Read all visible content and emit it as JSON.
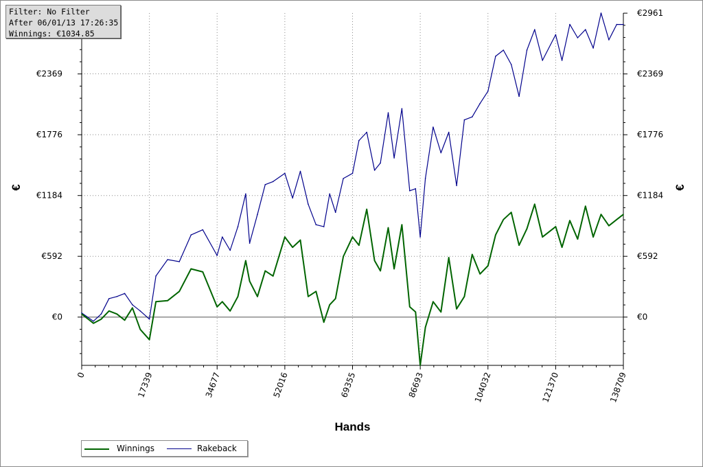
{
  "filter_box": {
    "line1": "Filter: No Filter",
    "line2": "After 06/01/13 17:26:35",
    "line3": "Winnings: €1034.85"
  },
  "colors": {
    "winnings": "#006400",
    "rakeback": "#00008b",
    "zero_line": "#555555"
  },
  "chart_data": {
    "type": "line",
    "xlabel": "Hands",
    "ylabel": "€",
    "ylabel_right": "€",
    "xlim": [
      0,
      138709
    ],
    "ylim": [
      -470,
      2961
    ],
    "x_ticks": [
      0,
      17339,
      34677,
      52016,
      69355,
      86693,
      104032,
      121370,
      138709
    ],
    "y_ticks": [
      0,
      592,
      1184,
      1776,
      2369,
      2961
    ],
    "y_tick_labels": [
      "€0",
      "€592",
      "€1184",
      "€1776",
      "€2369",
      "€2961"
    ],
    "grid": true,
    "legend_position": "bottom-left",
    "series": [
      {
        "name": "Winnings",
        "color": "#006400",
        "x": [
          0,
          3000,
          5000,
          7000,
          9000,
          11000,
          13000,
          15000,
          17339,
          19000,
          22000,
          25000,
          28000,
          31000,
          34677,
          36000,
          38000,
          40000,
          42000,
          43000,
          45000,
          47000,
          49000,
          52016,
          54000,
          56000,
          58000,
          60000,
          62000,
          63500,
          65000,
          67000,
          69355,
          71000,
          73000,
          75000,
          76500,
          78500,
          80000,
          82000,
          84000,
          85500,
          86693,
          88000,
          90000,
          92000,
          94000,
          96000,
          98000,
          100000,
          102000,
          104032,
          106000,
          108000,
          110000,
          112000,
          114000,
          116000,
          118000,
          121370,
          123000,
          125000,
          127000,
          129000,
          131000,
          133000,
          135000,
          137000,
          138709
        ],
        "y": [
          30,
          -60,
          -20,
          60,
          30,
          -30,
          90,
          -120,
          -220,
          150,
          160,
          250,
          470,
          440,
          100,
          150,
          60,
          200,
          550,
          350,
          200,
          450,
          400,
          780,
          680,
          750,
          200,
          250,
          -50,
          120,
          180,
          590,
          780,
          700,
          1050,
          550,
          450,
          870,
          470,
          900,
          100,
          50,
          -470,
          -100,
          150,
          50,
          580,
          80,
          200,
          610,
          420,
          500,
          800,
          950,
          1020,
          700,
          860,
          1100,
          780,
          880,
          680,
          940,
          760,
          1080,
          780,
          1000,
          890,
          950,
          1000
        ]
      },
      {
        "name": "Rakeback",
        "color": "#00008b",
        "x": [
          0,
          3000,
          5000,
          7000,
          9000,
          11000,
          13000,
          15000,
          17339,
          19000,
          22000,
          25000,
          28000,
          31000,
          34677,
          36000,
          38000,
          40000,
          42000,
          43000,
          45000,
          47000,
          49000,
          52016,
          54000,
          56000,
          58000,
          60000,
          62000,
          63500,
          65000,
          67000,
          69355,
          71000,
          73000,
          75000,
          76500,
          78500,
          80000,
          82000,
          84000,
          85500,
          86693,
          88000,
          90000,
          92000,
          94000,
          96000,
          98000,
          100000,
          102000,
          104032,
          106000,
          108000,
          110000,
          112000,
          114000,
          116000,
          118000,
          121370,
          123000,
          125000,
          127000,
          129000,
          131000,
          133000,
          135000,
          137000,
          138709
        ],
        "y": [
          40,
          -40,
          30,
          180,
          200,
          230,
          120,
          60,
          -20,
          400,
          560,
          540,
          800,
          850,
          600,
          780,
          650,
          880,
          1200,
          720,
          1000,
          1290,
          1320,
          1400,
          1160,
          1420,
          1100,
          900,
          880,
          1200,
          1020,
          1350,
          1400,
          1720,
          1800,
          1430,
          1500,
          1990,
          1550,
          2030,
          1230,
          1250,
          780,
          1350,
          1850,
          1600,
          1800,
          1280,
          1920,
          1950,
          2080,
          2200,
          2540,
          2600,
          2460,
          2150,
          2600,
          2800,
          2500,
          2750,
          2500,
          2850,
          2720,
          2800,
          2620,
          2960,
          2700,
          2850,
          2850
        ]
      }
    ]
  }
}
